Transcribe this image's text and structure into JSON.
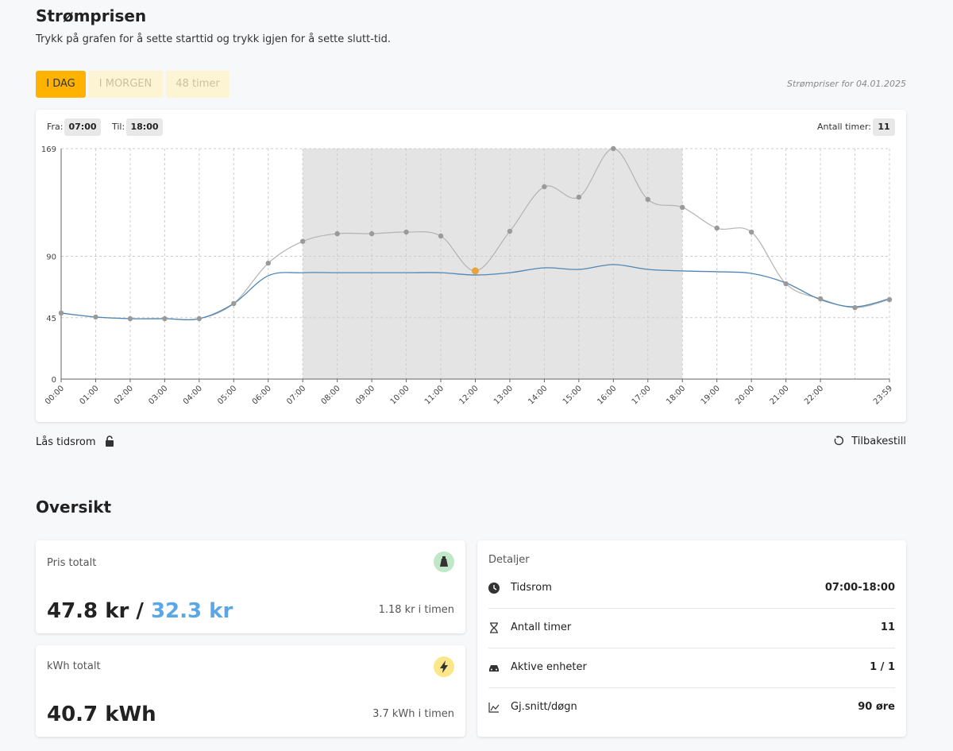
{
  "header": {
    "title": "Strømprisen",
    "subtitle": "Trykk på grafen for å sette starttid og trykk igjen for å sette slutt-tid.",
    "tabs": [
      "I DAG",
      "I MORGEN",
      "48 timer"
    ],
    "date_note": "Strømpriser for 04.01.2025"
  },
  "selection": {
    "from_label": "Fra:",
    "from": "07:00",
    "to_label": "Til:",
    "to": "18:00",
    "hours_label": "Antall timer:",
    "hours": "11"
  },
  "controls": {
    "lock": "Lås tidsrom",
    "reset": "Tilbakestill"
  },
  "chart_data": {
    "type": "line",
    "categories": [
      "00:00",
      "01:00",
      "02:00",
      "03:00",
      "04:00",
      "05:00",
      "06:00",
      "07:00",
      "08:00",
      "09:00",
      "10:00",
      "11:00",
      "12:00",
      "13:00",
      "14:00",
      "15:00",
      "16:00",
      "17:00",
      "18:00",
      "19:00",
      "20:00",
      "21:00",
      "22:00",
      null,
      "23:59"
    ],
    "series": [
      {
        "color": "#b3b3b3",
        "values": [
          48.4,
          45.5,
          44.3,
          44.3,
          44.3,
          55.4,
          85,
          101,
          106.6,
          106.6,
          107.8,
          104.9,
          79.3,
          108.4,
          141,
          133.4,
          169,
          131.7,
          125.9,
          110.7,
          107.8,
          69.9,
          58.9,
          52.4,
          58.3
        ]
      },
      {
        "color": "#4f86b5",
        "values": [
          48.4,
          45.5,
          44.3,
          44.3,
          44.3,
          55.4,
          75.8,
          78,
          78,
          78,
          78,
          78,
          76.3,
          78,
          81.6,
          80.4,
          84,
          80.4,
          79.3,
          78.7,
          77.5,
          70.5,
          58.3,
          53,
          58.9
        ]
      }
    ],
    "highlight_color": "#e8a43c",
    "selection_color": "#e4e4e4",
    "ylim": [
      0,
      169
    ],
    "yticks": [
      0,
      45,
      90,
      169
    ],
    "grid": true
  },
  "overview": {
    "title": "Oversikt",
    "price": {
      "label": "Pris totalt",
      "value": "47.8 kr",
      "separator": "/",
      "value2": "32.3 kr",
      "rate": "1.18 kr i timen"
    },
    "energy": {
      "label": "kWh totalt",
      "value": "40.7 kWh",
      "rate": "3.7 kWh i timen"
    },
    "details": {
      "title": "Detaljer",
      "rows": [
        [
          "Tidsrom",
          "07:00-18:00"
        ],
        [
          "Antall timer",
          "11"
        ],
        [
          "Aktive enheter",
          "1 / 1"
        ],
        [
          "Gj.snitt/døgn",
          "90 øre"
        ]
      ]
    }
  }
}
